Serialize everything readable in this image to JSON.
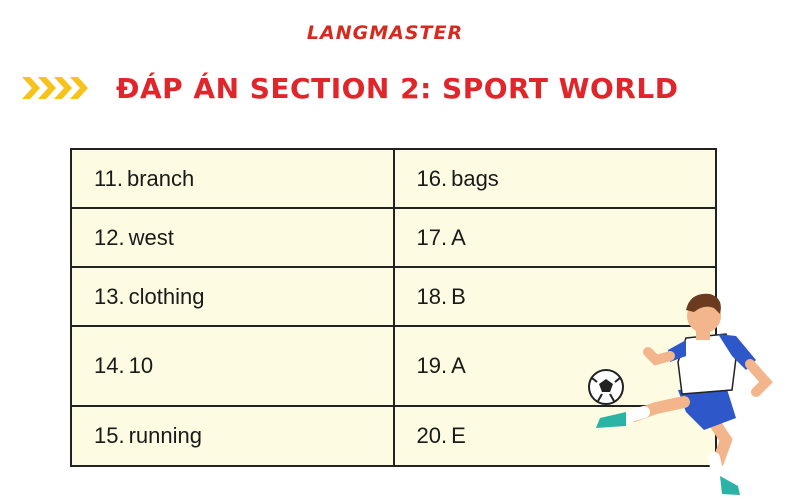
{
  "brand": {
    "name": "LANGMASTER",
    "color": "#d62a1e"
  },
  "header": {
    "title": "ĐÁP ÁN SECTION 2: SPORT WORLD",
    "arrow_icon": "chevron-right-icon",
    "arrow_color": "#f7c21a",
    "title_color": "#e0262a"
  },
  "answers": {
    "rows": [
      {
        "left": {
          "num": "11.",
          "answer": "branch"
        },
        "right": {
          "num": "16.",
          "answer": "bags"
        }
      },
      {
        "left": {
          "num": "12.",
          "answer": "west"
        },
        "right": {
          "num": "17.",
          "answer": "A"
        }
      },
      {
        "left": {
          "num": "13.",
          "answer": "clothing"
        },
        "right": {
          "num": "18.",
          "answer": "B"
        }
      },
      {
        "left": {
          "num": "14.",
          "answer": "10"
        },
        "right": {
          "num": "19.",
          "answer": "A"
        }
      },
      {
        "left": {
          "num": "15.",
          "answer": "running"
        },
        "right": {
          "num": "20.",
          "answer": "E"
        }
      }
    ],
    "background": "#fdfce2"
  },
  "illustration": {
    "icon": "soccer-player-icon",
    "ball_icon": "soccer-ball-icon"
  }
}
